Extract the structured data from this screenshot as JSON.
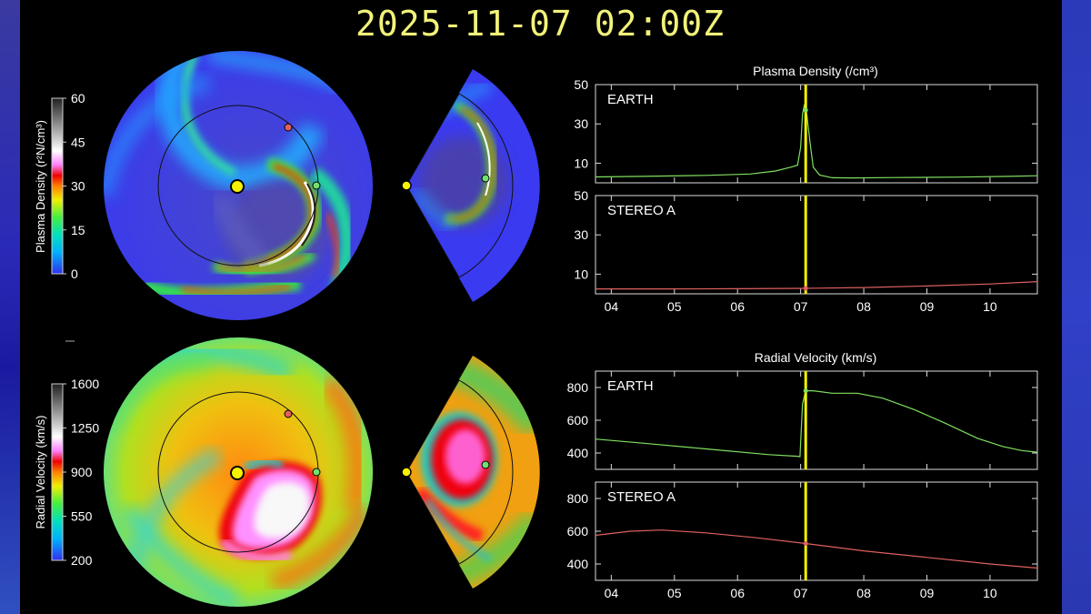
{
  "timestamp": "2025-11-07  02:00Z",
  "density_colorbar": {
    "label": "Plasma Density (r²N/cm³)",
    "ticks": [
      "60",
      "45",
      "30",
      "15",
      "0"
    ]
  },
  "velocity_colorbar": {
    "label": "Radial Velocity (km/s)",
    "ticks": [
      "1600",
      "1250",
      "900",
      "550",
      "200"
    ]
  },
  "colors": {
    "earth": "#80e060",
    "stereo": "#e06060",
    "marker": "#f6f200",
    "frame": "#dddddd"
  },
  "chart_data": [
    {
      "type": "line",
      "title": "Plasma Density (/cm³)",
      "xlabel": "",
      "ylabel": "",
      "x_ticks": [
        "04",
        "05",
        "06",
        "07",
        "08",
        "09",
        "10"
      ],
      "xlim": [
        3.75,
        10.75
      ],
      "current_time": 7.08,
      "panels": [
        {
          "name": "EARTH",
          "ylim": [
            0,
            50
          ],
          "y_ticks": [
            10,
            30,
            50
          ],
          "series": {
            "x": [
              3.75,
              4.5,
              5.5,
              6.2,
              6.6,
              6.85,
              6.95,
              7.0,
              7.03,
              7.06,
              7.1,
              7.15,
              7.2,
              7.3,
              7.5,
              7.8,
              8.5,
              9.5,
              10.3,
              10.75
            ],
            "values": [
              3,
              3.3,
              3.8,
              4.5,
              6,
              8,
              9,
              18,
              35,
              40,
              34,
              20,
              8,
              4,
              2.6,
              2.5,
              2.7,
              2.9,
              3.3,
              3.6
            ]
          }
        },
        {
          "name": "STEREO A",
          "ylim": [
            0,
            50
          ],
          "y_ticks": [
            10,
            30,
            50
          ],
          "series": {
            "x": [
              3.75,
              5.0,
              6.0,
              7.08,
              8.0,
              9.0,
              10.0,
              10.75
            ],
            "values": [
              2.5,
              2.5,
              2.6,
              2.8,
              3.2,
              4.0,
              5.0,
              6.2
            ]
          }
        }
      ]
    },
    {
      "type": "line",
      "title": "Radial Velocity (km/s)",
      "xlabel": "",
      "ylabel": "",
      "x_ticks": [
        "04",
        "05",
        "06",
        "07",
        "08",
        "09",
        "10"
      ],
      "xlim": [
        3.75,
        10.75
      ],
      "current_time": 7.08,
      "panels": [
        {
          "name": "EARTH",
          "ylim": [
            300,
            900
          ],
          "y_ticks": [
            400,
            600,
            800
          ],
          "series": {
            "x": [
              3.75,
              4.5,
              5.5,
              6.5,
              6.95,
              6.99,
              7.03,
              7.08,
              7.2,
              7.5,
              7.9,
              8.3,
              8.8,
              9.3,
              9.8,
              10.2,
              10.5,
              10.75
            ],
            "values": [
              485,
              460,
              425,
              390,
              380,
              378,
              700,
              780,
              780,
              765,
              765,
              735,
              665,
              580,
              490,
              440,
              415,
              405
            ]
          }
        },
        {
          "name": "STEREO A",
          "ylim": [
            300,
            900
          ],
          "y_ticks": [
            400,
            600,
            800
          ],
          "series": {
            "x": [
              3.75,
              4.3,
              4.8,
              5.5,
              6.3,
              7.08,
              8.0,
              9.0,
              10.0,
              10.75
            ],
            "values": [
              575,
              600,
              607,
              590,
              560,
              525,
              480,
              440,
              400,
              375
            ]
          }
        }
      ]
    }
  ]
}
